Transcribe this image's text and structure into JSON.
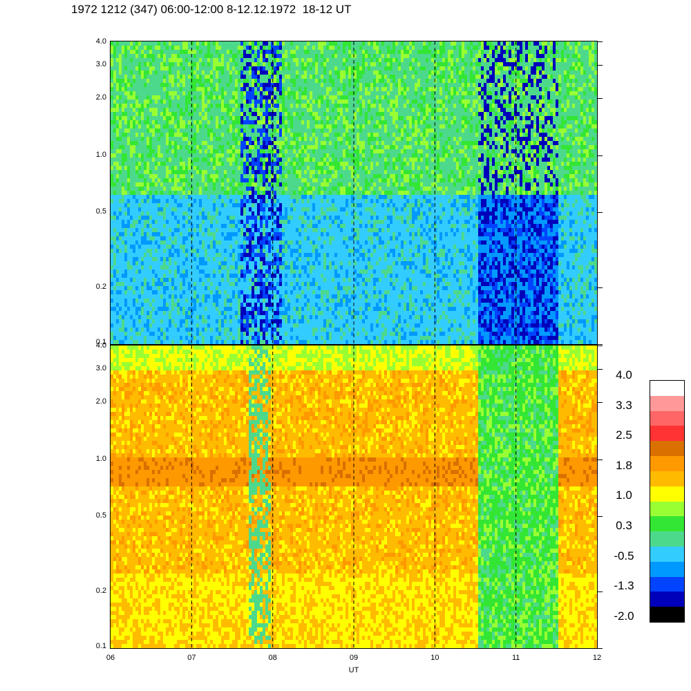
{
  "title": "1972 1212 (347) 06:00-12:00 8-12.12.1972  18-12 UT",
  "chart_data": {
    "type": "heatmap",
    "panels": [
      {
        "name": "upper",
        "y_scale": "log",
        "ylim": [
          0.1,
          4.0
        ],
        "xlim": [
          6,
          12
        ]
      },
      {
        "name": "lower",
        "y_scale": "log",
        "ylim": [
          0.1,
          4.0
        ],
        "xlim": [
          6,
          12
        ]
      }
    ],
    "x_ticks": [
      "06",
      "07",
      "08",
      "09",
      "10",
      "11",
      "12"
    ],
    "x_tick_values": [
      6,
      7,
      8,
      9,
      10,
      11,
      12
    ],
    "y_ticks": [
      "4.0",
      "3.0",
      "2.0",
      "1.0",
      "0.5",
      "0.2",
      "0.1"
    ],
    "y_tick_values": [
      4.0,
      3.0,
      2.0,
      1.0,
      0.5,
      0.2,
      0.1
    ],
    "xlabel": "UT",
    "grid": "dashed vertical lines at each hour",
    "colorbar": {
      "labels": [
        "4.0",
        "3.3",
        "2.5",
        "1.8",
        "1.0",
        "0.3",
        "-0.5",
        "-1.3",
        "-2.0"
      ],
      "colors": [
        "#ffffff",
        "#ff9999",
        "#ff6666",
        "#ff3333",
        "#d97000",
        "#ff9900",
        "#ffbb00",
        "#ffff00",
        "#99ff33",
        "#33e633",
        "#4dd98c",
        "#33ccff",
        "#0099ff",
        "#0044ff",
        "#0000bb",
        "#000000"
      ]
    }
  }
}
